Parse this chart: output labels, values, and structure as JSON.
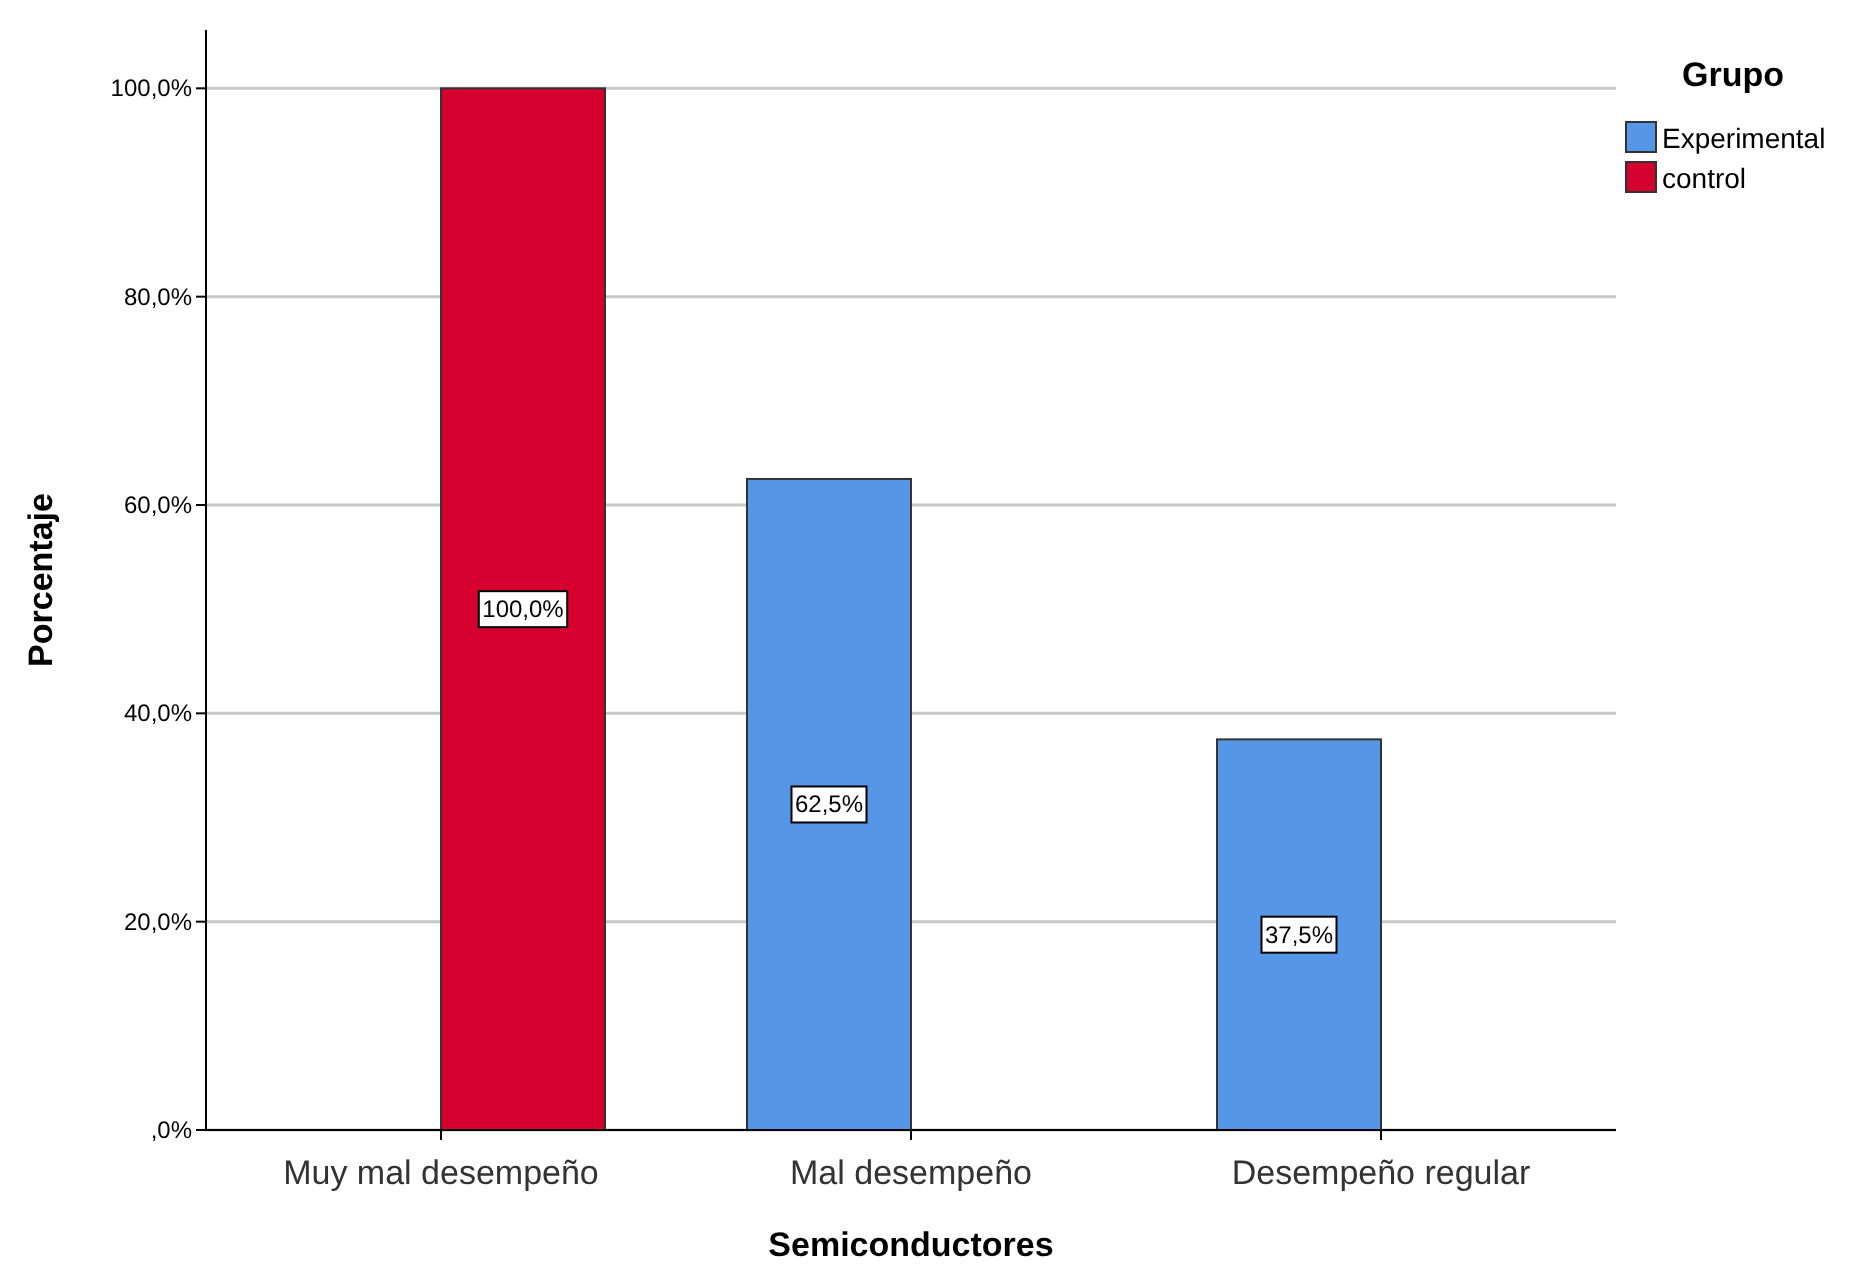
{
  "chart_data": {
    "type": "bar",
    "xlabel": "Semiconductores",
    "ylabel": "Porcentaje",
    "legend_title": "Grupo",
    "categories": [
      "Muy mal desempeño",
      "Mal desempeño",
      "Desempeño regular"
    ],
    "series": [
      {
        "name": "Experimental",
        "color": "#5596e6",
        "values": [
          0,
          62.5,
          37.5
        ],
        "value_labels": [
          null,
          "62,5%",
          "37,5%"
        ]
      },
      {
        "name": "control",
        "color": "#d6002f",
        "values": [
          100,
          0,
          0
        ],
        "value_labels": [
          "100,0%",
          null,
          null
        ]
      }
    ],
    "ylim": [
      0,
      105.6
    ],
    "yticks": [
      {
        "value": 0,
        "label": ",0%"
      },
      {
        "value": 20,
        "label": "20,0%"
      },
      {
        "value": 40,
        "label": "40,0%"
      },
      {
        "value": 60,
        "label": "60,0%"
      },
      {
        "value": 80,
        "label": "80,0%"
      },
      {
        "value": 100,
        "label": "100,0%"
      }
    ],
    "grid": "y",
    "legend": "top right"
  }
}
